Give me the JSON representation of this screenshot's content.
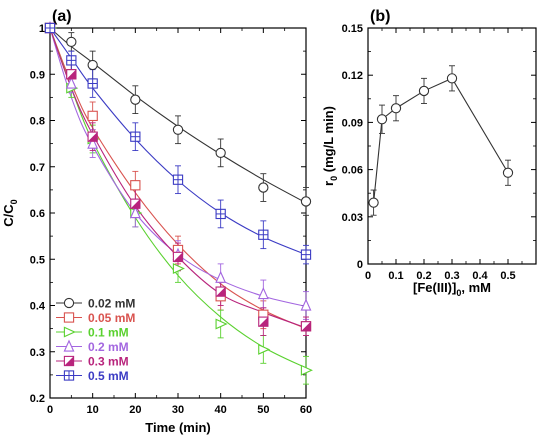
{
  "chart_data": [
    {
      "panel": "(a)",
      "type": "line",
      "title": "",
      "xlabel": "Time (min)",
      "ylabel": "C/C",
      "ylabel_sub": "0",
      "xlim": [
        0,
        60
      ],
      "ylim": [
        0.2,
        1.0
      ],
      "xticks": [
        0,
        10,
        20,
        30,
        40,
        50,
        60
      ],
      "yticks": [
        0.2,
        0.3,
        0.4,
        0.5,
        0.6,
        0.7,
        0.8,
        0.9,
        1
      ],
      "grid": false,
      "legend_position": "bottom-left",
      "x": [
        0,
        5,
        10,
        20,
        30,
        40,
        50,
        60
      ],
      "series": [
        {
          "name": "0.02 mM",
          "color": "#333333",
          "marker": "circle",
          "values": [
            1.0,
            0.97,
            0.92,
            0.845,
            0.78,
            0.73,
            0.655,
            0.625
          ],
          "errors": [
            0.01,
            0.02,
            0.03,
            0.03,
            0.03,
            0.03,
            0.03,
            0.03
          ],
          "fit": [
            1.0,
            0.96,
            0.925,
            0.853,
            0.787,
            0.727,
            0.672,
            0.622
          ]
        },
        {
          "name": "0.05 mM",
          "color": "#d9534f",
          "marker": "square",
          "values": [
            1.0,
            0.9,
            0.81,
            0.66,
            0.52,
            0.42,
            0.38,
            0.355
          ],
          "errors": [
            0.01,
            0.02,
            0.03,
            0.03,
            0.03,
            0.03,
            0.03,
            0.02
          ],
          "fit": [
            1.0,
            0.88,
            0.784,
            0.644,
            0.532,
            0.447,
            0.39,
            0.35
          ]
        },
        {
          "name": "0.1 mM",
          "color": "#5ad12f",
          "marker": "triangle-right",
          "values": [
            1.0,
            0.87,
            0.76,
            0.6,
            0.48,
            0.36,
            0.305,
            0.26
          ],
          "errors": [
            0.01,
            0.02,
            0.03,
            0.03,
            0.03,
            0.03,
            0.03,
            0.03
          ],
          "fit": [
            1.0,
            0.87,
            0.755,
            0.59,
            0.465,
            0.375,
            0.31,
            0.265
          ]
        },
        {
          "name": "0.2 mM",
          "color": "#a366e0",
          "marker": "triangle-up",
          "values": [
            1.0,
            0.88,
            0.75,
            0.6,
            0.51,
            0.46,
            0.425,
            0.4
          ],
          "errors": [
            0.01,
            0.02,
            0.03,
            0.03,
            0.03,
            0.03,
            0.03,
            0.03
          ],
          "fit": [
            1.0,
            0.85,
            0.745,
            0.6,
            0.51,
            0.455,
            0.42,
            0.398
          ]
        },
        {
          "name": "0.3 mM",
          "color": "#b8247c",
          "marker": "square-half",
          "values": [
            1.0,
            0.9,
            0.765,
            0.62,
            0.505,
            0.43,
            0.365,
            0.355
          ],
          "errors": [
            0.01,
            0.02,
            0.03,
            0.03,
            0.03,
            0.03,
            0.03,
            0.02
          ],
          "fit": [
            1.0,
            0.87,
            0.77,
            0.615,
            0.505,
            0.425,
            0.385,
            0.352
          ]
        },
        {
          "name": "0.5 mM",
          "color": "#3b3bc4",
          "marker": "square-plus",
          "values": [
            1.0,
            0.93,
            0.88,
            0.765,
            0.672,
            0.598,
            0.553,
            0.51
          ],
          "errors": [
            0.01,
            0.02,
            0.03,
            0.03,
            0.03,
            0.03,
            0.03,
            0.02
          ],
          "fit": [
            1.0,
            0.935,
            0.87,
            0.76,
            0.67,
            0.6,
            0.548,
            0.51
          ]
        }
      ]
    },
    {
      "panel": "(b)",
      "type": "line",
      "title": "",
      "xlabel": "[Fe(III)]",
      "xlabel_sub": "0",
      "xlabel_suffix": ", mM",
      "ylabel": "r",
      "ylabel_sub": "0",
      "ylabel_suffix": " (mg/L min)",
      "xlim": [
        0,
        0.6
      ],
      "ylim": [
        0,
        0.15
      ],
      "xticks": [
        0,
        0.1,
        0.2,
        0.3,
        0.4,
        0.5
      ],
      "xtick_labels": [
        "0",
        "0.1",
        "0.2",
        "0.3",
        "0.4",
        "0.5"
      ],
      "yticks": [
        0,
        0.03,
        0.06,
        0.09,
        0.12,
        0.15
      ],
      "ytick_labels": [
        "0",
        "0.03",
        "0.06",
        "0.09",
        "0.12",
        "0.15"
      ],
      "grid": false,
      "color": "#333333",
      "x": [
        0.02,
        0.05,
        0.1,
        0.2,
        0.3,
        0.5
      ],
      "values": [
        0.039,
        0.092,
        0.099,
        0.11,
        0.118,
        0.058
      ],
      "errors": [
        0.008,
        0.009,
        0.008,
        0.008,
        0.008,
        0.008
      ]
    }
  ]
}
